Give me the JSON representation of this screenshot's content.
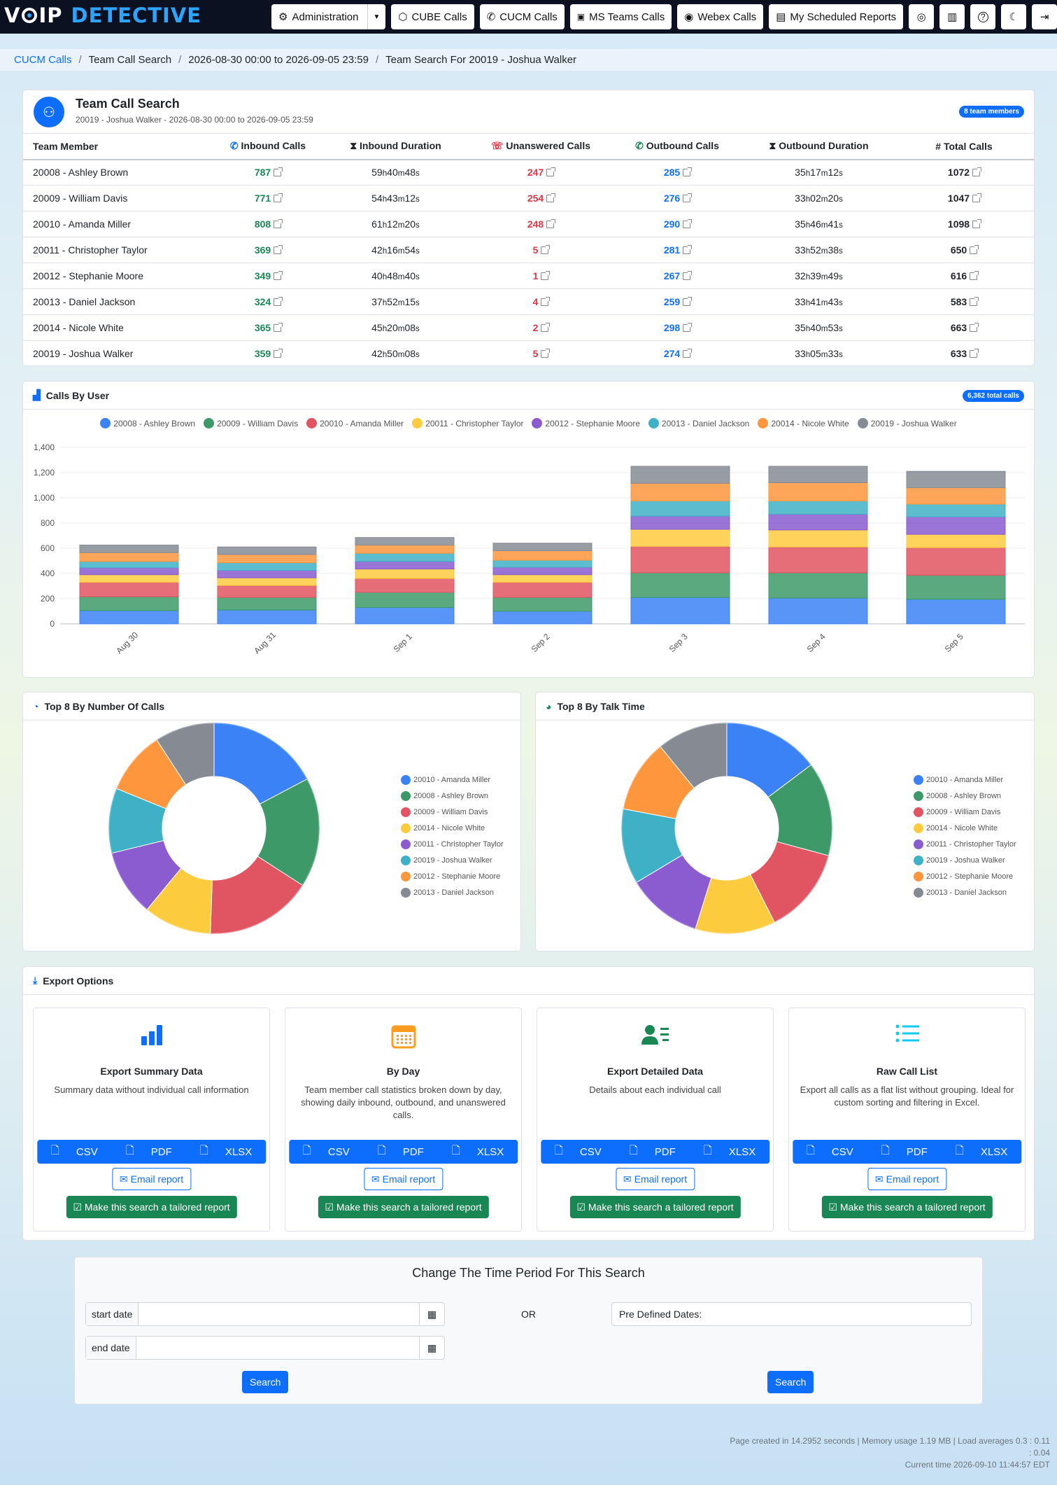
{
  "brand": {
    "part1": "V",
    "part2": "IP",
    "part3": "DETECTIVE"
  },
  "nav": {
    "admin": "Administration",
    "cube": "CUBE Calls",
    "cucm": "CUCM Calls",
    "teams": "MS Teams Calls",
    "webex": "Webex Calls",
    "reports": "My Scheduled Reports"
  },
  "breadcrumb": {
    "root": "CUCM Calls",
    "b1": "Team Call Search",
    "b2": "2026-08-30 00:00 to 2026-09-05 23:59",
    "b3": "Team Search For 20019 - Joshua Walker"
  },
  "summary": {
    "title": "Team Call Search",
    "subtitle": "20019 - Joshua Walker - 2026-08-30 00:00 to 2026-09-05 23:59",
    "badge": "8 team members",
    "headers": [
      "Team Member",
      "Inbound Calls",
      "Inbound Duration",
      "Unanswered Calls",
      "Outbound Calls",
      "Outbound Duration",
      "Total Calls"
    ],
    "rows": [
      {
        "member": "20008 - Ashley Brown",
        "inbound": "787",
        "in_dur": [
          "59",
          "40",
          "48"
        ],
        "unanswered": "247",
        "outbound": "285",
        "out_dur": [
          "35",
          "17",
          "12"
        ],
        "total": "1072"
      },
      {
        "member": "20009 - William Davis",
        "inbound": "771",
        "in_dur": [
          "54",
          "43",
          "12"
        ],
        "unanswered": "254",
        "outbound": "276",
        "out_dur": [
          "33",
          "02",
          "20"
        ],
        "total": "1047"
      },
      {
        "member": "20010 - Amanda Miller",
        "inbound": "808",
        "in_dur": [
          "61",
          "12",
          "20"
        ],
        "unanswered": "248",
        "outbound": "290",
        "out_dur": [
          "35",
          "46",
          "41"
        ],
        "total": "1098"
      },
      {
        "member": "20011 - Christopher Taylor",
        "inbound": "369",
        "in_dur": [
          "42",
          "16",
          "54"
        ],
        "unanswered": "5",
        "outbound": "281",
        "out_dur": [
          "33",
          "52",
          "38"
        ],
        "total": "650"
      },
      {
        "member": "20012 - Stephanie Moore",
        "inbound": "349",
        "in_dur": [
          "40",
          "48",
          "40"
        ],
        "unanswered": "1",
        "outbound": "267",
        "out_dur": [
          "32",
          "39",
          "49"
        ],
        "total": "616"
      },
      {
        "member": "20013 - Daniel Jackson",
        "inbound": "324",
        "in_dur": [
          "37",
          "52",
          "15"
        ],
        "unanswered": "4",
        "outbound": "259",
        "out_dur": [
          "33",
          "41",
          "43"
        ],
        "total": "583"
      },
      {
        "member": "20014 - Nicole White",
        "inbound": "365",
        "in_dur": [
          "45",
          "20",
          "08"
        ],
        "unanswered": "2",
        "outbound": "298",
        "out_dur": [
          "35",
          "40",
          "53"
        ],
        "total": "663"
      },
      {
        "member": "20019 - Joshua Walker",
        "inbound": "359",
        "in_dur": [
          "42",
          "50",
          "08"
        ],
        "unanswered": "5",
        "outbound": "274",
        "out_dur": [
          "33",
          "05",
          "33"
        ],
        "total": "633"
      }
    ]
  },
  "bar_card": {
    "title": "Calls By User",
    "badge": "6,362 total calls"
  },
  "pie1_card": {
    "title": "Top 8 By Number Of Calls"
  },
  "pie2_card": {
    "title": "Top 8 By Talk Time"
  },
  "colors": [
    "#3b82f6",
    "#3d9a68",
    "#e05561",
    "#fdcb3e",
    "#8a5cd0",
    "#3fb1c6",
    "#fd963d",
    "#868b93"
  ],
  "chart_data": [
    {
      "type": "bar",
      "stacked": true,
      "categories": [
        "Aug 30",
        "Aug 31",
        "Sep 1",
        "Sep 2",
        "Sep 3",
        "Sep 4",
        "Sep 5"
      ],
      "ylim": [
        0,
        1400
      ],
      "yticks": [
        "0",
        "200",
        "400",
        "600",
        "800",
        "1,000",
        "1,200",
        "1,400"
      ],
      "series": [
        {
          "name": "20008 - Ashley Brown",
          "values": [
            105,
            110,
            130,
            100,
            210,
            205,
            195
          ]
        },
        {
          "name": "20009 - William Davis",
          "values": [
            110,
            100,
            120,
            110,
            195,
            200,
            190
          ]
        },
        {
          "name": "20010 - Amanda Miller",
          "values": [
            115,
            95,
            110,
            120,
            210,
            205,
            220
          ]
        },
        {
          "name": "20011 - Christopher Taylor",
          "values": [
            60,
            60,
            75,
            60,
            135,
            135,
            105
          ]
        },
        {
          "name": "20012 - Stephanie Moore",
          "values": [
            55,
            60,
            60,
            60,
            105,
            125,
            140
          ]
        },
        {
          "name": "20013 - Daniel Jackson",
          "values": [
            50,
            60,
            65,
            55,
            120,
            105,
            100
          ]
        },
        {
          "name": "20014 - Nicole White",
          "values": [
            70,
            65,
            65,
            75,
            140,
            145,
            130
          ]
        },
        {
          "name": "20019 - Joshua Walker",
          "values": [
            60,
            60,
            60,
            60,
            135,
            130,
            130
          ]
        }
      ]
    },
    {
      "type": "pie",
      "donut": true,
      "labels": [
        "20010 - Amanda Miller",
        "20008 - Ashley Brown",
        "20009 - William Davis",
        "20014 - Nicole White",
        "20011 - Christopher Taylor",
        "20019 - Joshua Walker",
        "20012 - Stephanie Moore",
        "20013 - Daniel Jackson"
      ],
      "values": [
        1098,
        1072,
        1047,
        663,
        650,
        633,
        616,
        583
      ]
    },
    {
      "type": "pie",
      "donut": true,
      "labels": [
        "20010 - Amanda Miller",
        "20008 - Ashley Brown",
        "20009 - William Davis",
        "20014 - Nicole White",
        "20011 - Christopher Taylor",
        "20019 - Joshua Walker",
        "20012 - Stephanie Moore",
        "20013 - Daniel Jackson"
      ],
      "values": [
        96.98,
        94.96,
        87.76,
        81.01,
        76.16,
        75.93,
        73.47,
        71.56
      ]
    }
  ],
  "export": {
    "title": "Export Options",
    "boxes": [
      {
        "title": "Export Summary Data",
        "desc": "Summary data without individual call information",
        "icon": "bar-chart-icon",
        "color": "#0d6efd"
      },
      {
        "title": "By Day",
        "desc": "Team member call statistics broken down by day, showing daily inbound, outbound, and unanswered calls.",
        "icon": "calendar-icon",
        "color": "#fd9c1f"
      },
      {
        "title": "Export Detailed Data",
        "desc": "Details about each individual call",
        "icon": "person-list-icon",
        "color": "#198754"
      },
      {
        "title": "Raw Call List",
        "desc": "Export all calls as a flat list without grouping. Ideal for custom sorting and filtering in Excel.",
        "icon": "list-icon",
        "color": "#0dcaf0"
      }
    ],
    "csv": "CSV",
    "pdf": "PDF",
    "xlsx": "XLSX",
    "email": "Email report",
    "tailored": "Make this search a tailored report"
  },
  "period": {
    "title": "Change The Time Period For This Search",
    "start_label": "start date",
    "end_label": "end date",
    "or": "OR",
    "predefined": "Pre Defined Dates:",
    "search": "Search"
  },
  "footer": {
    "line1": "Page created in 14.2952 seconds | Memory usage 1.19 MB | Load averages 0.3 : 0.11",
    "line2": ": 0.04",
    "line3": "Current time 2026-09-10 11:44:57 EDT"
  }
}
